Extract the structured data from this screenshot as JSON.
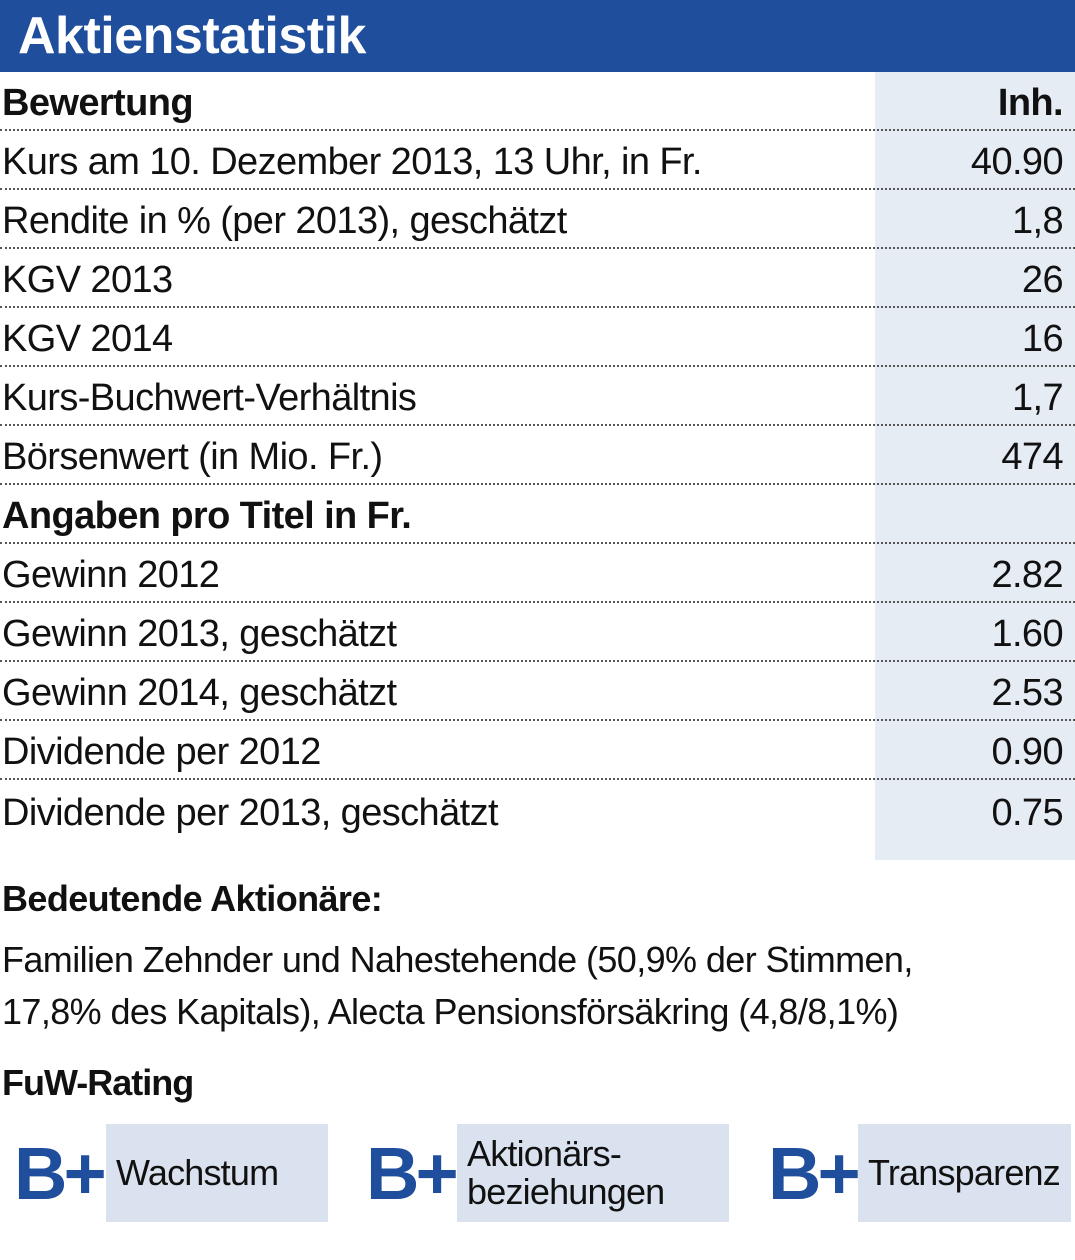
{
  "title": "Aktienstatistik",
  "table": {
    "rows": [
      {
        "label": "Bewertung",
        "value": "Inh.",
        "header": true
      },
      {
        "label": "Kurs am 10. Dezember 2013, 13 Uhr, in Fr.",
        "value": "40.90"
      },
      {
        "label": "Rendite in % (per 2013), geschätzt",
        "value": "1,8"
      },
      {
        "label": "KGV 2013",
        "value": "26"
      },
      {
        "label": "KGV 2014",
        "value": "16"
      },
      {
        "label": "Kurs-Buchwert-Verhältnis",
        "value": "1,7"
      },
      {
        "label": "Börsenwert (in Mio. Fr.)",
        "value": "474"
      },
      {
        "label": "Angaben pro Titel in Fr.",
        "value": "",
        "header": true
      },
      {
        "label": "Gewinn 2012",
        "value": "2.82"
      },
      {
        "label": "Gewinn 2013, geschätzt",
        "value": "1.60"
      },
      {
        "label": "Gewinn 2014, geschätzt",
        "value": "2.53"
      },
      {
        "label": "Dividende per 2012",
        "value": "0.90"
      },
      {
        "label": "Dividende per 2013, geschätzt",
        "value": "0.75"
      }
    ]
  },
  "shareholders": {
    "title": "Bedeutende Aktionäre:",
    "line1": "Familien Zehnder und Nahestehende (50,9% der Stimmen,",
    "line2": "17,8% des Kapitals), Alecta Pensionsförsäkring (4,8/8,1%)"
  },
  "rating": {
    "title": "FuW-Rating",
    "items": [
      {
        "grade": "B+",
        "label_line1": "Wachstum",
        "label_line2": ""
      },
      {
        "grade": "B+",
        "label_line1": "Aktionärs-",
        "label_line2": "beziehungen"
      },
      {
        "grade": "B+",
        "label_line1": "Transparenz",
        "label_line2": ""
      }
    ]
  },
  "colors": {
    "accent": "#1f4e9c",
    "shade": "#e6ecf4",
    "box": "#d9e2ee"
  }
}
